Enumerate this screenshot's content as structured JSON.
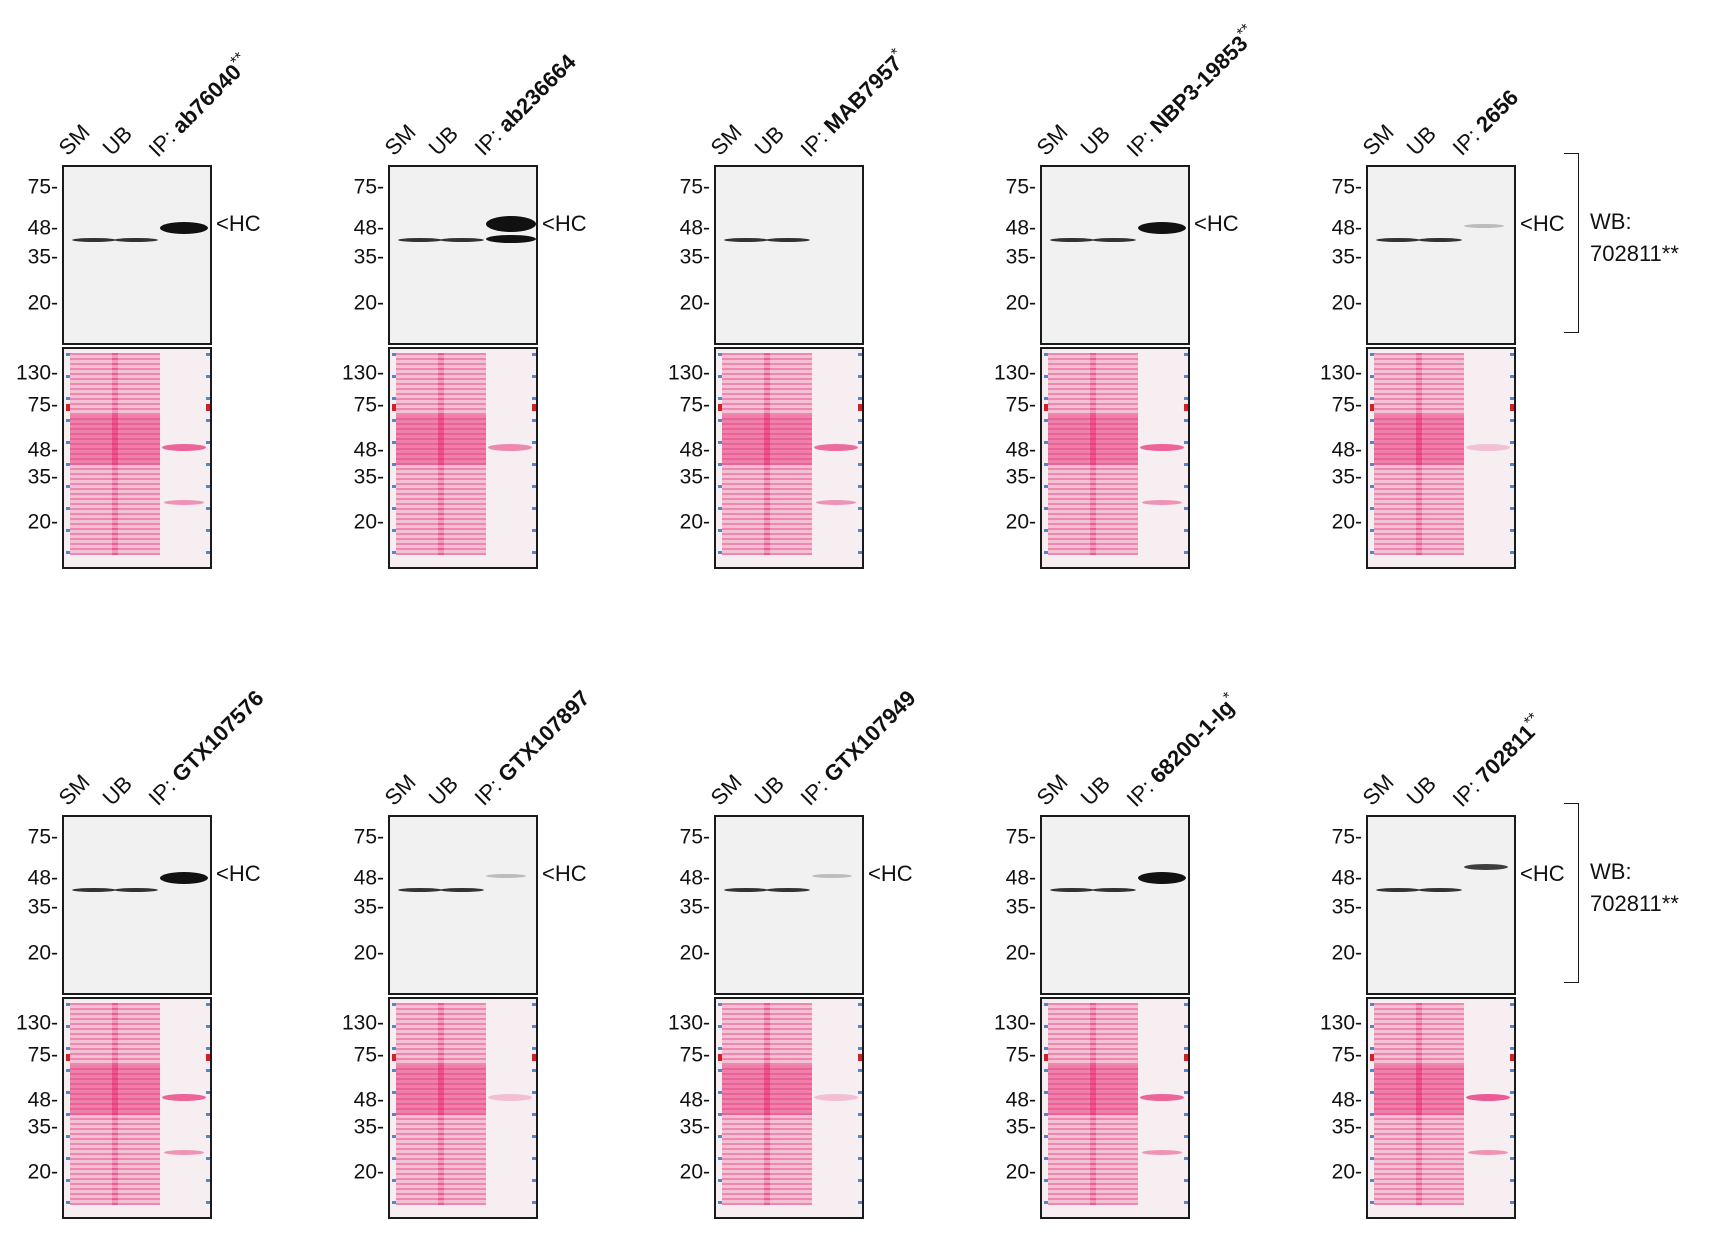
{
  "lane_labels": {
    "sm": "SM",
    "ub": "UB",
    "ip_prefix": "IP: "
  },
  "hc_label": "<HC",
  "wb_label": {
    "line1": "WB:",
    "line2": "702811**"
  },
  "wb_markers": [
    "75-",
    "48-",
    "35-",
    "20-"
  ],
  "ponceau_markers": [
    "130-",
    "75-",
    "48-",
    "35-",
    "20-"
  ],
  "panels": [
    {
      "antibody": "ab76040",
      "suffix": "**",
      "ip_band": "strong",
      "hc_shown": true
    },
    {
      "antibody": "ab236664",
      "suffix": "",
      "ip_band": "doublet",
      "hc_shown": true
    },
    {
      "antibody": "MAB7957",
      "suffix": "*",
      "ip_band": "none",
      "hc_shown": false
    },
    {
      "antibody": "NBP3-19853",
      "suffix": "**",
      "ip_band": "strong",
      "hc_shown": true
    },
    {
      "antibody": "2656",
      "suffix": "",
      "ip_band": "faint",
      "hc_shown": true
    },
    {
      "antibody": "GTX107576",
      "suffix": "",
      "ip_band": "strong",
      "hc_shown": true
    },
    {
      "antibody": "GTX107897",
      "suffix": "",
      "ip_band": "faint",
      "hc_shown": true
    },
    {
      "antibody": "GTX107949",
      "suffix": "",
      "ip_band": "faint",
      "hc_shown": true
    },
    {
      "antibody": "68200-1-Ig",
      "suffix": "*",
      "ip_band": "strong",
      "hc_shown": false
    },
    {
      "antibody": "702811",
      "suffix": "**",
      "ip_band": "medium",
      "hc_shown": true
    }
  ],
  "colors": {
    "band": "#111111",
    "ponceau": "#e8357a",
    "ladder_blue": "#4f86d8",
    "ladder_red": "#d0202a"
  }
}
